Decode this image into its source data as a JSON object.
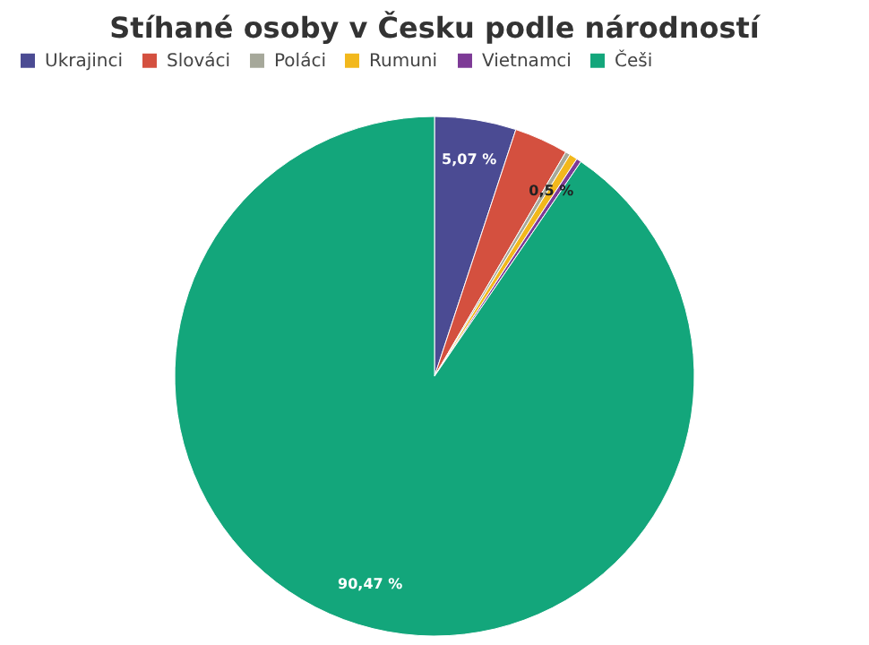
{
  "chart_data": {
    "type": "pie",
    "title": "Stíhané osoby v Česku podle národností",
    "categories": [
      "Ukrajinci",
      "Slováci",
      "Poláci",
      "Rumuni",
      "Vietnamci",
      "Češi"
    ],
    "values": [
      5.07,
      3.36,
      0.3,
      0.5,
      0.3,
      90.47
    ],
    "colors": [
      "#4b4b93",
      "#d4503f",
      "#a6a89a",
      "#f2b81c",
      "#7d3a96",
      "#13a67b"
    ],
    "value_labels": [
      "5,07 %",
      null,
      null,
      "0,5 %",
      null,
      "90,47 %"
    ],
    "legend": "top"
  }
}
